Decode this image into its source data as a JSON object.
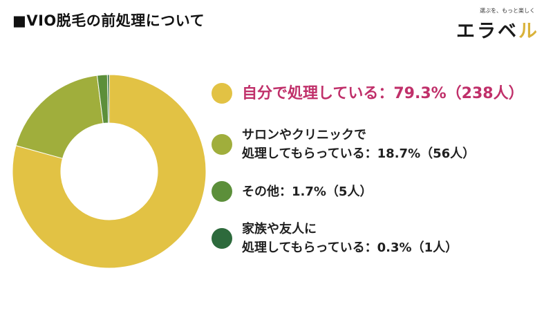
{
  "title": "■VIO脱毛の前処理について",
  "logo": {
    "tagline": "選ぶを、もっと楽しく",
    "name_part1": "エラベ",
    "name_part2": "ル"
  },
  "chart_data": {
    "type": "pie",
    "variant": "donut",
    "title": "■VIO脱毛の前処理について",
    "slices": [
      {
        "label": "自分で処理している",
        "percent": 79.3,
        "count": 238,
        "color": "#e2c244"
      },
      {
        "label": "サロンやクリニックで処理してもらっている",
        "percent": 18.7,
        "count": 56,
        "color": "#a0ae3c"
      },
      {
        "label": "その他",
        "percent": 1.7,
        "count": 5,
        "color": "#5c8f3a"
      },
      {
        "label": "家族や友人に処理してもらっている",
        "percent": 0.3,
        "count": 1,
        "color": "#2d6a3c"
      }
    ],
    "legend_position": "right"
  },
  "legend": [
    {
      "lines": [
        "自分で処理している：79.3%（238人）"
      ],
      "color": "#e2c244",
      "highlight": true
    },
    {
      "lines": [
        "サロンやクリニックで",
        "処理してもらっている：18.7%（56人）"
      ],
      "color": "#a0ae3c",
      "highlight": false
    },
    {
      "lines": [
        "その他：1.7%（5人）"
      ],
      "color": "#5c8f3a",
      "highlight": false
    },
    {
      "lines": [
        "家族や友人に",
        "処理してもらっている：0.3%（1人）"
      ],
      "color": "#2d6a3c",
      "highlight": false
    }
  ]
}
